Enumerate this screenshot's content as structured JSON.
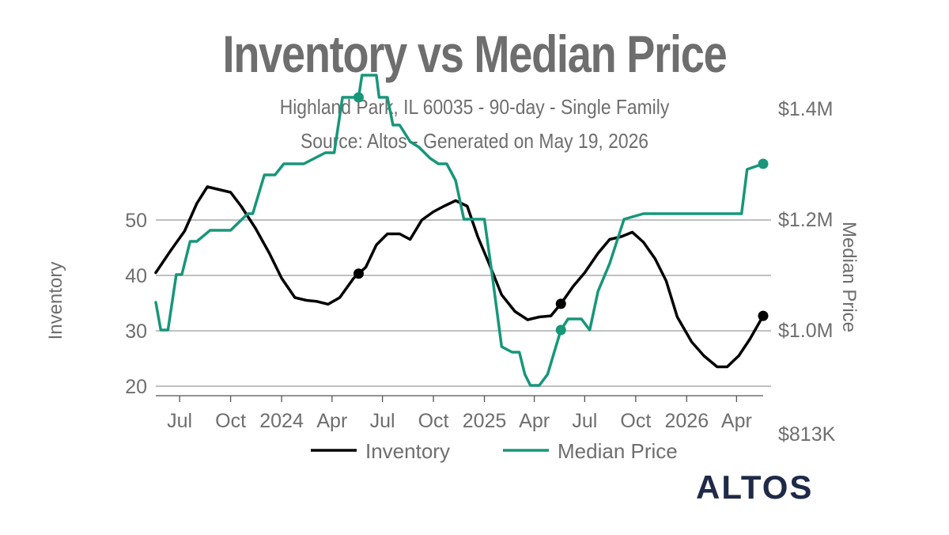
{
  "title": "Inventory vs Median Price",
  "subtitle_1": "Highland Park, IL 60035 - 90-day - Single Family",
  "subtitle_2": "Source: Altos - Generated on May 19, 2026",
  "logo_text": "ALTOS",
  "colors": {
    "inventory": "#000000",
    "median_price": "#17967a",
    "grid": "#9a9a9a",
    "text": "#6e6e6e",
    "logo": "#1e2a48"
  },
  "chart_data": {
    "type": "line",
    "xlabel": "",
    "x_tick_labels": [
      "Jul",
      "Oct",
      "2024",
      "Apr",
      "Jul",
      "Oct",
      "2025",
      "Apr",
      "Jul",
      "Oct",
      "2026",
      "Apr"
    ],
    "x_tick_dates": [
      "2023-07-01",
      "2023-10-01",
      "2024-01-01",
      "2024-04-01",
      "2024-07-01",
      "2024-10-01",
      "2025-01-01",
      "2025-04-01",
      "2025-07-01",
      "2025-10-01",
      "2026-01-01",
      "2026-04-01"
    ],
    "x_range": [
      "2023-05-19",
      "2026-05-19"
    ],
    "y_left": {
      "label": "Inventory",
      "ticks": [
        20,
        30,
        40,
        50
      ],
      "range": [
        18,
        56
      ]
    },
    "y_right": {
      "label": "Median Price",
      "tick_labels": [
        "$813K",
        "$1.0M",
        "$1.2M",
        "$1.4M"
      ],
      "tick_values": [
        813000,
        1000000,
        1200000,
        1400000
      ]
    },
    "grid": true,
    "legend": {
      "position": "bottom",
      "entries": [
        "Inventory",
        "Median Price"
      ]
    },
    "series": [
      {
        "name": "Inventory",
        "axis": "left",
        "x": [
          "2023-05-19",
          "2023-06-15",
          "2023-07-10",
          "2023-08-01",
          "2023-08-20",
          "2023-09-10",
          "2023-10-01",
          "2023-10-20",
          "2023-11-15",
          "2023-12-10",
          "2024-01-01",
          "2024-01-25",
          "2024-02-15",
          "2024-03-05",
          "2024-03-25",
          "2024-04-15",
          "2024-05-10",
          "2024-06-01",
          "2024-06-20",
          "2024-07-10",
          "2024-08-01",
          "2024-08-20",
          "2024-09-10",
          "2024-10-01",
          "2024-10-20",
          "2024-11-10",
          "2024-12-01",
          "2024-12-20",
          "2025-01-10",
          "2025-02-01",
          "2025-02-25",
          "2025-03-20",
          "2025-04-10",
          "2025-05-01",
          "2025-05-20",
          "2025-06-10",
          "2025-07-01",
          "2025-07-25",
          "2025-08-15",
          "2025-09-05",
          "2025-09-25",
          "2025-10-15",
          "2025-11-05",
          "2025-11-25",
          "2025-12-15",
          "2026-01-10",
          "2026-02-01",
          "2026-02-25",
          "2026-03-15",
          "2026-04-05",
          "2026-04-25",
          "2026-05-19"
        ],
        "y": [
          40.5,
          44.5,
          48,
          53,
          56,
          55.5,
          55,
          52.5,
          48.5,
          44,
          39.5,
          36,
          35.5,
          35.3,
          34.8,
          36,
          39.5,
          41.5,
          45.5,
          47.5,
          47.5,
          46.5,
          50,
          51.5,
          52.5,
          53.5,
          52.5,
          47,
          42,
          36.5,
          33.5,
          32,
          32.5,
          32.7,
          35,
          38,
          40.5,
          44,
          46.5,
          47,
          47.8,
          46,
          43,
          39,
          32.5,
          28,
          25.5,
          23.5,
          23.5,
          25.5,
          28.5,
          32.7
        ],
        "end_marker": true,
        "markers_on": [
          "2024-05-19",
          "2025-05-19"
        ]
      },
      {
        "name": "Median Price",
        "axis": "right",
        "x": [
          "2023-05-19",
          "2023-05-28",
          "2023-06-10",
          "2023-06-25",
          "2023-07-05",
          "2023-07-20",
          "2023-08-01",
          "2023-08-25",
          "2023-09-05",
          "2023-09-20",
          "2023-10-01",
          "2023-11-01",
          "2023-11-10",
          "2023-12-01",
          "2023-12-20",
          "2024-01-05",
          "2024-01-25",
          "2024-02-10",
          "2024-03-20",
          "2024-04-05",
          "2024-04-20",
          "2024-05-01",
          "2024-05-19",
          "2024-05-25",
          "2024-06-05",
          "2024-06-20",
          "2024-06-25",
          "2024-07-10",
          "2024-07-20",
          "2024-08-01",
          "2024-08-20",
          "2024-09-05",
          "2024-09-25",
          "2024-10-10",
          "2024-10-25",
          "2024-11-10",
          "2024-11-25",
          "2024-12-15",
          "2025-01-01",
          "2025-01-15",
          "2025-02-01",
          "2025-02-20",
          "2025-03-05",
          "2025-03-15",
          "2025-03-25",
          "2025-04-10",
          "2025-04-25",
          "2025-05-10",
          "2025-05-19",
          "2025-06-01",
          "2025-06-15",
          "2025-06-25",
          "2025-07-10",
          "2025-07-25",
          "2025-08-15",
          "2025-09-10",
          "2025-10-15",
          "2025-12-01",
          "2026-01-15",
          "2026-02-20",
          "2026-04-01",
          "2026-04-10",
          "2026-04-20",
          "2026-05-19"
        ],
        "y": [
          1050000,
          1000000,
          1000000,
          1100000,
          1100000,
          1160000,
          1160000,
          1180000,
          1180000,
          1180000,
          1180000,
          1210000,
          1210000,
          1280000,
          1280000,
          1300000,
          1300000,
          1300000,
          1320000,
          1320000,
          1420000,
          1420000,
          1420000,
          1460000,
          1460000,
          1460000,
          1420000,
          1420000,
          1370000,
          1370000,
          1340000,
          1330000,
          1310000,
          1300000,
          1300000,
          1270000,
          1200000,
          1200000,
          1200000,
          1100000,
          970000,
          960000,
          960000,
          920000,
          900000,
          900000,
          920000,
          970000,
          1000000,
          1020000,
          1020000,
          1020000,
          1000000,
          1070000,
          1120000,
          1200000,
          1210000,
          1210000,
          1210000,
          1210000,
          1210000,
          1210000,
          1290000,
          1300000
        ],
        "end_marker": true,
        "markers_on": [
          "2024-05-19",
          "2025-05-19"
        ]
      }
    ]
  }
}
